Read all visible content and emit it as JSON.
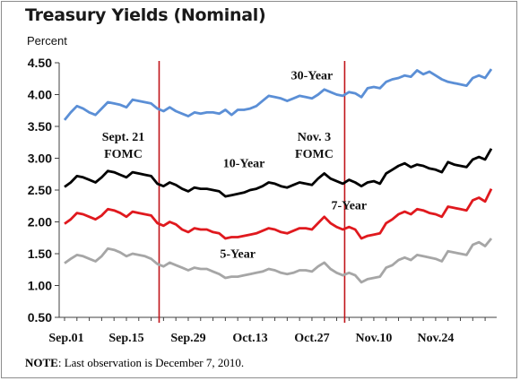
{
  "chart_data": {
    "type": "line",
    "title": "Treasury Yields (Nominal)",
    "ylabel": "Percent",
    "ylim": [
      0.5,
      4.5
    ],
    "yticks": [
      "4.50",
      "4.00",
      "3.50",
      "3.00",
      "2.50",
      "2.00",
      "1.50",
      "1.00",
      "0.50"
    ],
    "x_tick_labels": [
      "Sep.01",
      "Sep.15",
      "Sep.29",
      "Oct.13",
      "Oct.27",
      "Nov.10",
      "Nov.24"
    ],
    "n_points": 70,
    "vlines": [
      {
        "label": "Sept. 21",
        "sub": "FOMC",
        "index": 15
      },
      {
        "label": "Nov. 3",
        "sub": "FOMC",
        "index": 45
      }
    ],
    "series": [
      {
        "name": "30-Year",
        "color": "#5b8fd6",
        "values": [
          3.6,
          3.72,
          3.82,
          3.78,
          3.72,
          3.68,
          3.78,
          3.88,
          3.86,
          3.84,
          3.8,
          3.92,
          3.9,
          3.88,
          3.86,
          3.78,
          3.74,
          3.8,
          3.74,
          3.7,
          3.66,
          3.72,
          3.7,
          3.72,
          3.72,
          3.7,
          3.76,
          3.68,
          3.76,
          3.76,
          3.78,
          3.82,
          3.9,
          3.98,
          3.96,
          3.94,
          3.9,
          3.94,
          3.98,
          3.96,
          3.94,
          4.0,
          4.08,
          4.04,
          4.0,
          3.98,
          4.04,
          4.02,
          3.96,
          4.1,
          4.12,
          4.1,
          4.2,
          4.24,
          4.26,
          4.3,
          4.28,
          4.38,
          4.32,
          4.36,
          4.3,
          4.24,
          4.2,
          4.18,
          4.16,
          4.14,
          4.26,
          4.3,
          4.26,
          4.4
        ]
      },
      {
        "name": "10-Year",
        "color": "#000000",
        "values": [
          2.55,
          2.62,
          2.72,
          2.7,
          2.66,
          2.62,
          2.7,
          2.8,
          2.78,
          2.74,
          2.7,
          2.78,
          2.76,
          2.74,
          2.72,
          2.6,
          2.56,
          2.62,
          2.58,
          2.52,
          2.48,
          2.54,
          2.52,
          2.52,
          2.5,
          2.48,
          2.4,
          2.42,
          2.44,
          2.46,
          2.5,
          2.52,
          2.56,
          2.62,
          2.6,
          2.56,
          2.54,
          2.58,
          2.62,
          2.6,
          2.58,
          2.68,
          2.76,
          2.68,
          2.64,
          2.6,
          2.66,
          2.62,
          2.56,
          2.62,
          2.64,
          2.6,
          2.76,
          2.82,
          2.88,
          2.92,
          2.86,
          2.9,
          2.88,
          2.84,
          2.82,
          2.78,
          2.94,
          2.9,
          2.88,
          2.86,
          2.98,
          3.02,
          2.98,
          3.15
        ]
      },
      {
        "name": "7-Year",
        "color": "#e0191e",
        "values": [
          1.97,
          2.04,
          2.14,
          2.12,
          2.08,
          2.04,
          2.1,
          2.2,
          2.18,
          2.14,
          2.08,
          2.16,
          2.14,
          2.12,
          2.1,
          1.98,
          1.94,
          2.0,
          1.96,
          1.88,
          1.84,
          1.9,
          1.88,
          1.88,
          1.84,
          1.82,
          1.74,
          1.76,
          1.76,
          1.78,
          1.8,
          1.82,
          1.86,
          1.9,
          1.88,
          1.84,
          1.82,
          1.86,
          1.9,
          1.9,
          1.88,
          1.98,
          2.08,
          1.98,
          1.92,
          1.88,
          1.92,
          1.88,
          1.74,
          1.78,
          1.8,
          1.82,
          1.98,
          2.04,
          2.12,
          2.16,
          2.12,
          2.2,
          2.18,
          2.14,
          2.12,
          2.08,
          2.24,
          2.22,
          2.2,
          2.18,
          2.34,
          2.38,
          2.32,
          2.52
        ]
      },
      {
        "name": "5-Year",
        "color": "#a6a6a6",
        "values": [
          1.35,
          1.42,
          1.48,
          1.46,
          1.42,
          1.38,
          1.46,
          1.58,
          1.56,
          1.52,
          1.46,
          1.5,
          1.48,
          1.46,
          1.42,
          1.34,
          1.3,
          1.36,
          1.32,
          1.28,
          1.24,
          1.28,
          1.26,
          1.26,
          1.22,
          1.18,
          1.12,
          1.14,
          1.14,
          1.16,
          1.18,
          1.2,
          1.22,
          1.26,
          1.24,
          1.2,
          1.18,
          1.2,
          1.24,
          1.24,
          1.22,
          1.3,
          1.36,
          1.26,
          1.2,
          1.16,
          1.2,
          1.16,
          1.05,
          1.1,
          1.12,
          1.14,
          1.28,
          1.32,
          1.4,
          1.44,
          1.4,
          1.48,
          1.46,
          1.44,
          1.42,
          1.38,
          1.54,
          1.52,
          1.5,
          1.48,
          1.64,
          1.68,
          1.62,
          1.74
        ]
      }
    ],
    "series_labels": [
      {
        "text": "30-Year",
        "index": 40,
        "value": 4.24
      },
      {
        "text": "10-Year",
        "index": 29,
        "value": 2.86
      },
      {
        "text": "7-Year",
        "index": 46,
        "value": 2.2
      },
      {
        "text": "5-Year",
        "index": 28,
        "value": 1.44
      }
    ],
    "grid": false
  },
  "note": {
    "label": "NOTE",
    "text": ": Last observation is December 7, 2010."
  }
}
